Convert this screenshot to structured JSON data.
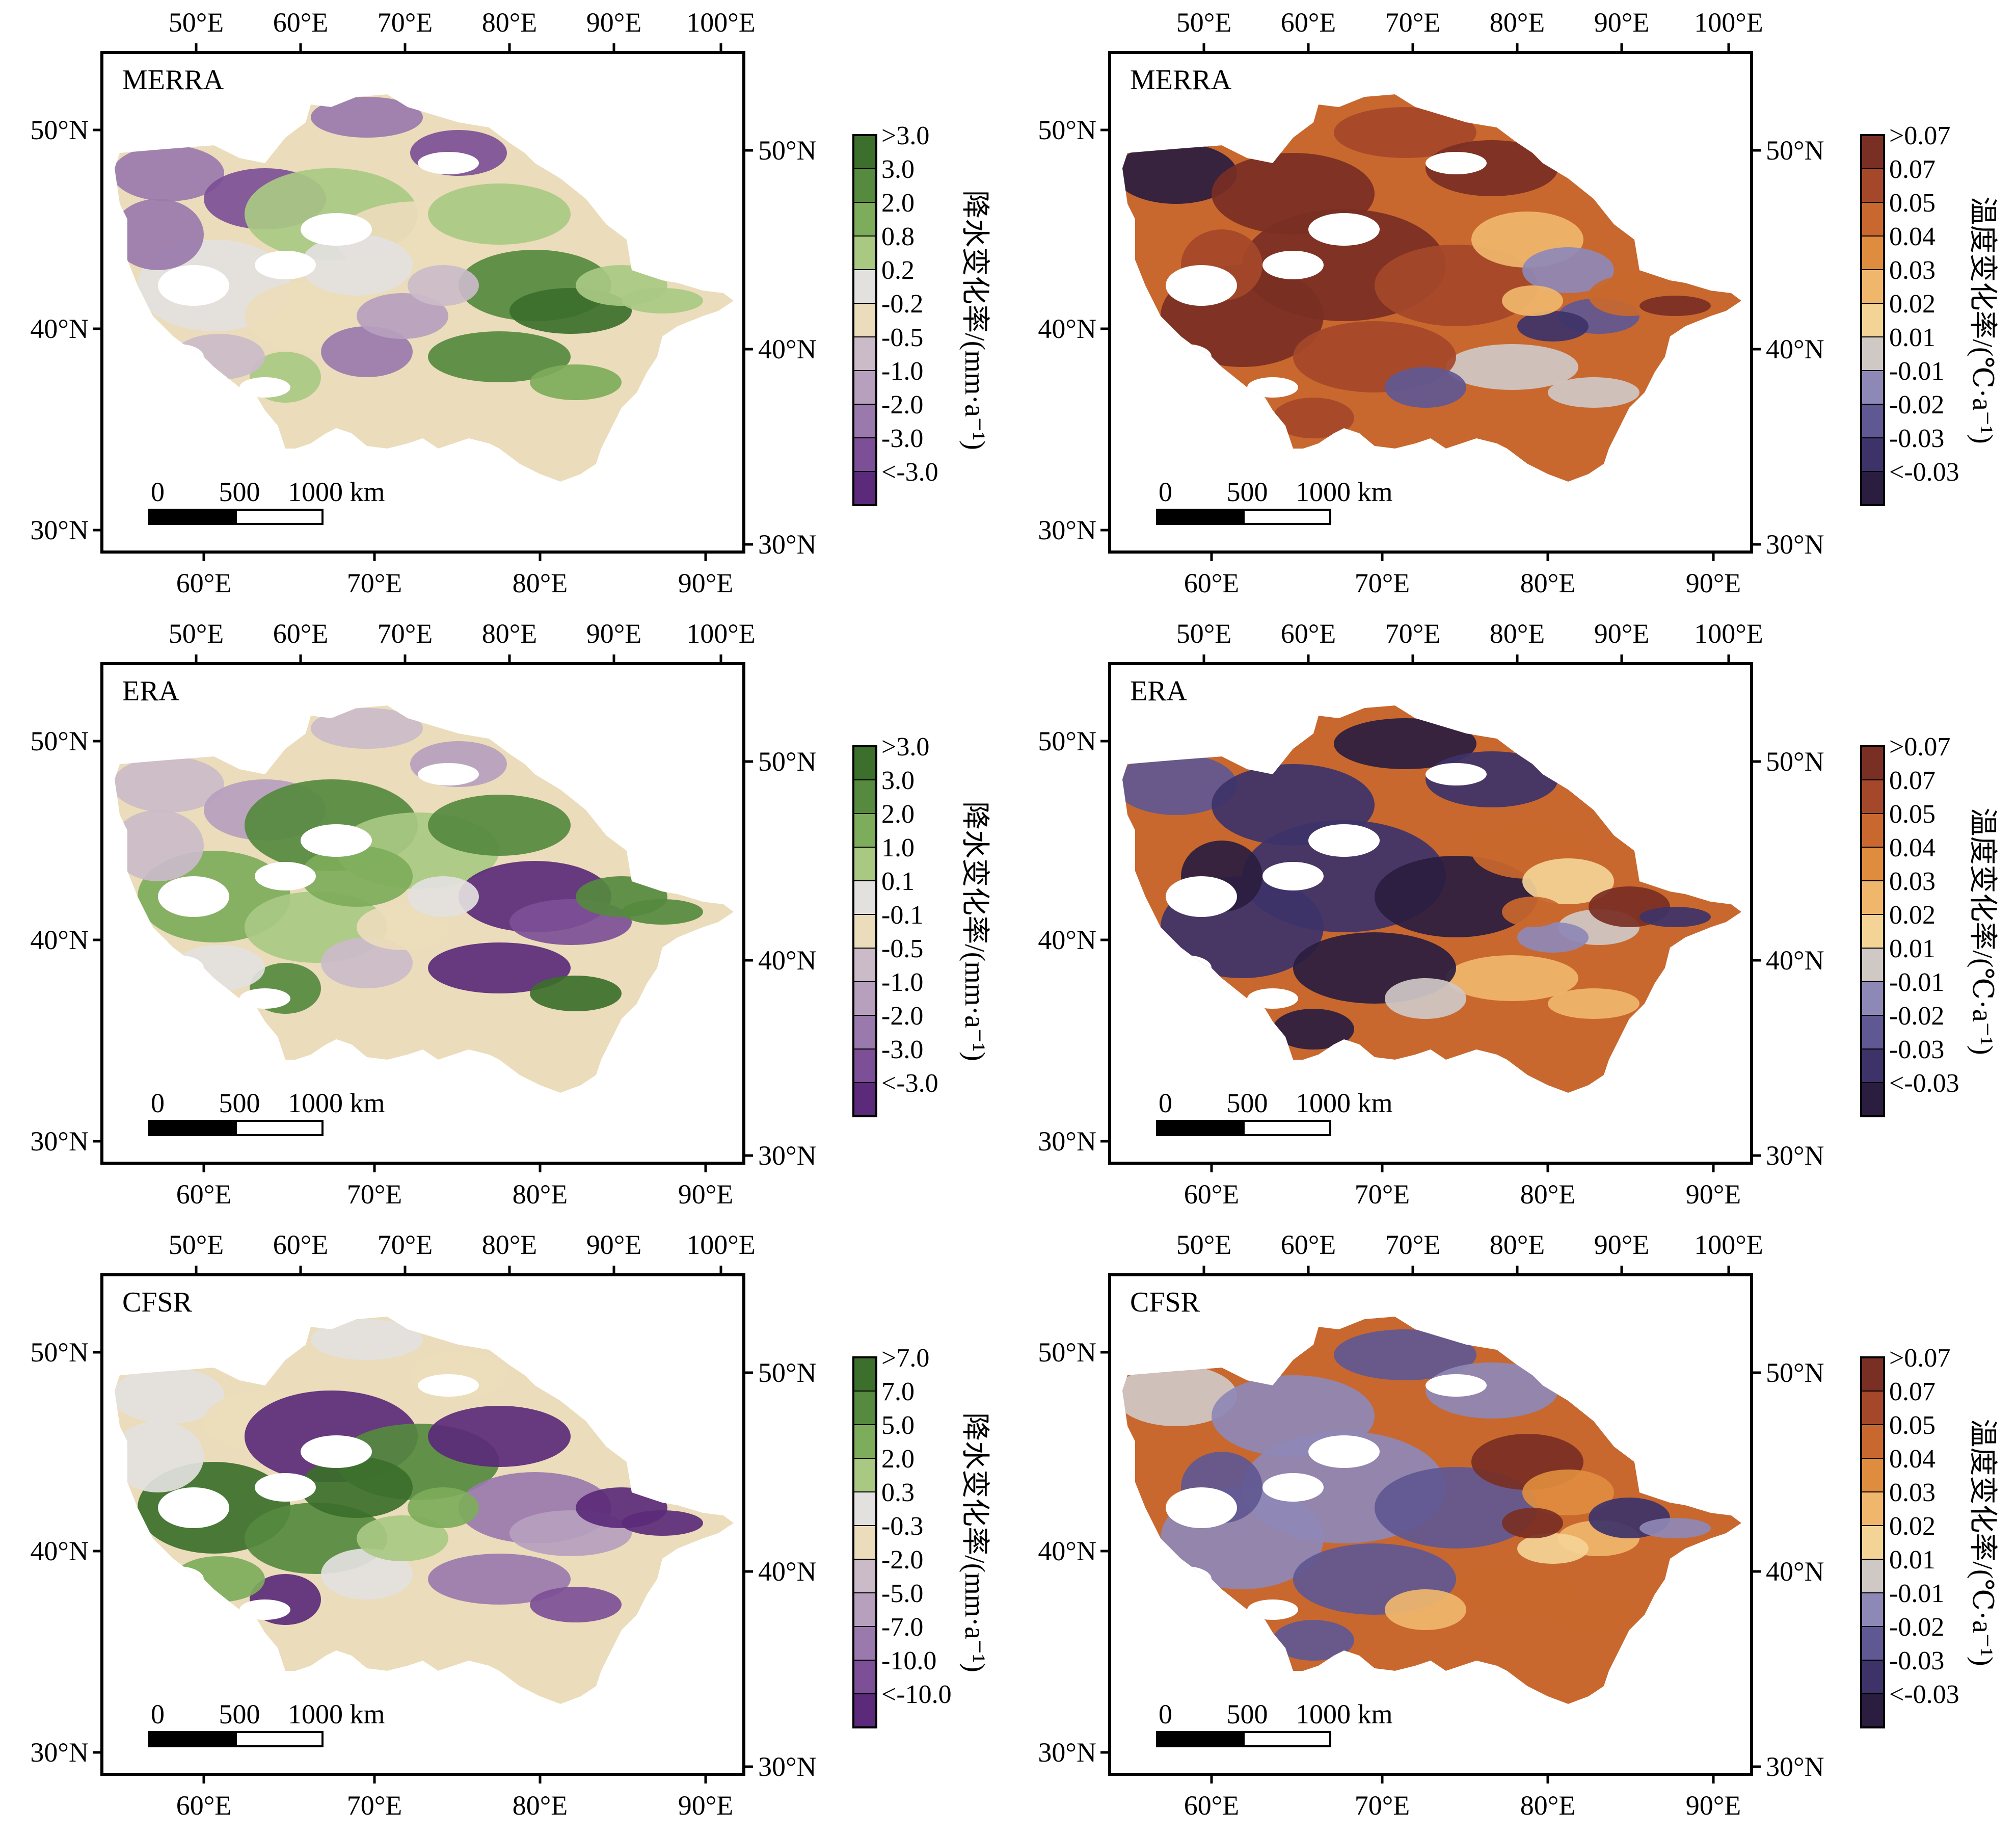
{
  "figure": {
    "colors": {
      "precip": [
        "#5b2a7a",
        "#7d4f96",
        "#9a7aad",
        "#b6a0be",
        "#cbbbc9",
        "#ebdcbb",
        "#e3e1e0",
        "#a9c983",
        "#7dac5a",
        "#558a3f",
        "#3b6f2b"
      ],
      "temp": [
        "#2a1d3f",
        "#3d3369",
        "#5f5893",
        "#8e88b6",
        "#cfc8c5",
        "#f4d496",
        "#f0b66c",
        "#e08c3f",
        "#c9682e",
        "#a5482a",
        "#7a2f24"
      ]
    },
    "panels": [
      {
        "label": "MERRA",
        "kind": "precip",
        "top_ticks": [
          "50°E",
          "60°E",
          "70°E",
          "80°E",
          "90°E",
          "100°E"
        ],
        "bottom_ticks": [
          "60°E",
          "70°E",
          "80°E",
          "90°E"
        ],
        "left_ticks": [
          "50°N",
          "40°N",
          "30°N"
        ],
        "right_ticks": [
          "50°N",
          "40°N",
          "30°N"
        ],
        "scale": {
          "t0": "0",
          "t1": "500",
          "t2": "1000 km"
        },
        "legend_title": "降水变化率/(mm·a⁻¹)",
        "legend_labels": [
          ">3.0",
          "3.0",
          "2.0",
          "0.8",
          "0.2",
          "-0.2",
          "-0.5",
          "-1.0",
          "-2.0",
          "-3.0",
          "<-3.0"
        ]
      },
      {
        "label": "MERRA",
        "kind": "temp",
        "top_ticks": [
          "50°E",
          "60°E",
          "70°E",
          "80°E",
          "90°E",
          "100°E"
        ],
        "bottom_ticks": [
          "60°E",
          "70°E",
          "80°E",
          "90°E"
        ],
        "left_ticks": [
          "50°N",
          "40°N",
          "30°N"
        ],
        "right_ticks": [
          "50°N",
          "40°N",
          "30°N"
        ],
        "scale": {
          "t0": "0",
          "t1": "500",
          "t2": "1000 km"
        },
        "legend_title": "温度变化率/(℃·a⁻¹)",
        "legend_labels": [
          ">0.07",
          "0.07",
          "0.05",
          "0.04",
          "0.03",
          "0.02",
          "0.01",
          "-0.01",
          "-0.02",
          "-0.03",
          "<-0.03"
        ]
      },
      {
        "label": "ERA",
        "kind": "precip",
        "top_ticks": [
          "50°E",
          "60°E",
          "70°E",
          "80°E",
          "90°E",
          "100°E"
        ],
        "bottom_ticks": [
          "60°E",
          "70°E",
          "80°E",
          "90°E"
        ],
        "left_ticks": [
          "50°N",
          "40°N",
          "30°N"
        ],
        "right_ticks": [
          "50°N",
          "40°N",
          "30°N"
        ],
        "scale": {
          "t0": "0",
          "t1": "500",
          "t2": "1000 km"
        },
        "legend_title": "降水变化率/(mm·a⁻¹)",
        "legend_labels": [
          ">3.0",
          "3.0",
          "2.0",
          "1.0",
          "0.1",
          "-0.1",
          "-0.5",
          "-1.0",
          "-2.0",
          "-3.0",
          "<-3.0"
        ]
      },
      {
        "label": "ERA",
        "kind": "temp",
        "top_ticks": [
          "50°E",
          "60°E",
          "70°E",
          "80°E",
          "90°E",
          "100°E"
        ],
        "bottom_ticks": [
          "60°E",
          "70°E",
          "80°E",
          "90°E"
        ],
        "left_ticks": [
          "50°N",
          "40°N",
          "30°N"
        ],
        "right_ticks": [
          "50°N",
          "40°N",
          "30°N"
        ],
        "scale": {
          "t0": "0",
          "t1": "500",
          "t2": "1000 km"
        },
        "legend_title": "温度变化率/(℃·a⁻¹)",
        "legend_labels": [
          ">0.07",
          "0.07",
          "0.05",
          "0.04",
          "0.03",
          "0.02",
          "0.01",
          "-0.01",
          "-0.02",
          "-0.03",
          "<-0.03"
        ]
      },
      {
        "label": "CFSR",
        "kind": "precip",
        "top_ticks": [
          "50°E",
          "60°E",
          "70°E",
          "80°E",
          "90°E",
          "100°E"
        ],
        "bottom_ticks": [
          "60°E",
          "70°E",
          "80°E",
          "90°E"
        ],
        "left_ticks": [
          "50°N",
          "40°N",
          "30°N"
        ],
        "right_ticks": [
          "50°N",
          "40°N",
          "30°N"
        ],
        "scale": {
          "t0": "0",
          "t1": "500",
          "t2": "1000 km"
        },
        "legend_title": "降水变化率/(mm·a⁻¹)",
        "legend_labels": [
          ">7.0",
          "7.0",
          "5.0",
          "2.0",
          "0.3",
          "-0.3",
          "-2.0",
          "-5.0",
          "-7.0",
          "-10.0",
          "<-10.0"
        ]
      },
      {
        "label": "CFSR",
        "kind": "temp",
        "top_ticks": [
          "50°E",
          "60°E",
          "70°E",
          "80°E",
          "90°E",
          "100°E"
        ],
        "bottom_ticks": [
          "60°E",
          "70°E",
          "80°E",
          "90°E"
        ],
        "left_ticks": [
          "50°N",
          "40°N",
          "30°N"
        ],
        "right_ticks": [
          "50°N",
          "40°N",
          "30°N"
        ],
        "scale": {
          "t0": "0",
          "t1": "500",
          "t2": "1000 km"
        },
        "legend_title": "温度变化率/(℃·a⁻¹)",
        "legend_labels": [
          ">0.07",
          "0.07",
          "0.05",
          "0.04",
          "0.03",
          "0.02",
          "0.01",
          "-0.01",
          "-0.02",
          "-0.03",
          "<-0.03"
        ]
      }
    ]
  }
}
